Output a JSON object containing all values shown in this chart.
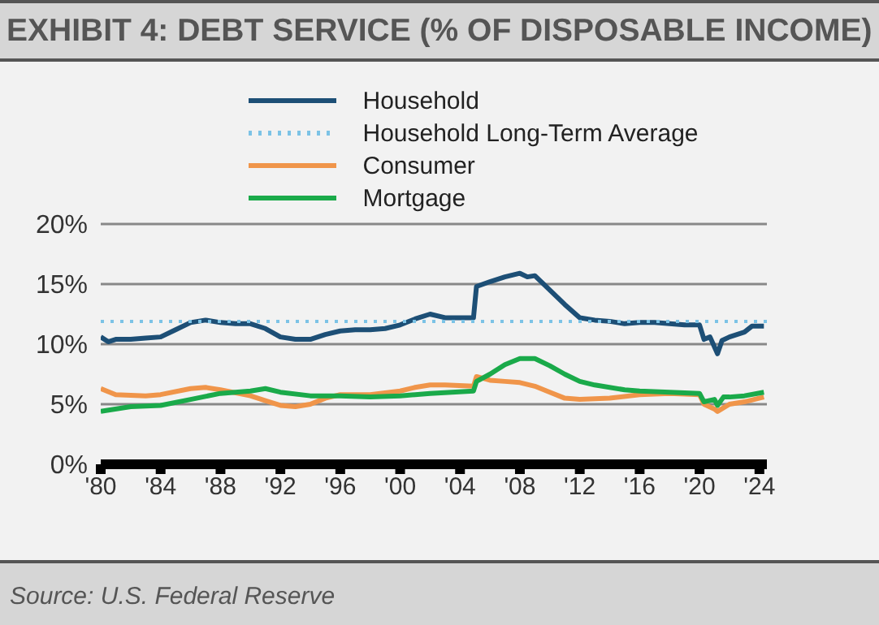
{
  "chart_data": {
    "type": "line",
    "title": "EXHIBIT 4: DEBT SERVICE (% OF DISPOSABLE INCOME)",
    "xlim": [
      1980,
      2024.5
    ],
    "xticks": [
      {
        "value": 1980,
        "label": "'80"
      },
      {
        "value": 1984,
        "label": "'84"
      },
      {
        "value": 1988,
        "label": "'88"
      },
      {
        "value": 1992,
        "label": "'92"
      },
      {
        "value": 1996,
        "label": "'96"
      },
      {
        "value": 2000,
        "label": "'00"
      },
      {
        "value": 2004,
        "label": "'04"
      },
      {
        "value": 2008,
        "label": "'08"
      },
      {
        "value": 2012,
        "label": "'12"
      },
      {
        "value": 2016,
        "label": "'16"
      },
      {
        "value": 2020,
        "label": "'20"
      },
      {
        "value": 2024,
        "label": "'24"
      }
    ],
    "ylim": [
      0,
      20
    ],
    "yticks": [
      {
        "value": 0,
        "label": "0%"
      },
      {
        "value": 5,
        "label": "5%"
      },
      {
        "value": 10,
        "label": "10%"
      },
      {
        "value": 15,
        "label": "15%"
      },
      {
        "value": 20,
        "label": "20%"
      }
    ],
    "grid": "y",
    "legend": "top",
    "marker": "none",
    "series": [
      {
        "name": "Household",
        "color": "#1d4f76",
        "line_style": "solid",
        "x": [
          1980,
          1980.5,
          1981,
          1982,
          1983,
          1984,
          1985,
          1986,
          1987,
          1988,
          1989,
          1990,
          1991,
          1992,
          1993,
          1994,
          1995,
          1996,
          1997,
          1998,
          1999,
          2000,
          2001,
          2002,
          2003,
          2004,
          2004.9,
          2005.1,
          2006,
          2007,
          2008,
          2008.5,
          2009,
          2010,
          2011,
          2012,
          2013,
          2014,
          2015,
          2016,
          2017,
          2018,
          2019,
          2020,
          2020.3,
          2020.7,
          2021.2,
          2021.5,
          2022,
          2023,
          2023.5,
          2024.3
        ],
        "values": [
          10.6,
          10.2,
          10.4,
          10.4,
          10.5,
          10.6,
          11.2,
          11.8,
          12.0,
          11.8,
          11.7,
          11.7,
          11.3,
          10.6,
          10.4,
          10.4,
          10.8,
          11.1,
          11.2,
          11.2,
          11.3,
          11.6,
          12.1,
          12.5,
          12.2,
          12.2,
          12.2,
          14.8,
          15.2,
          15.6,
          15.9,
          15.6,
          15.7,
          14.5,
          13.3,
          12.2,
          12.0,
          11.9,
          11.7,
          11.8,
          11.8,
          11.7,
          11.6,
          11.6,
          10.4,
          10.6,
          9.2,
          10.3,
          10.6,
          11.0,
          11.5,
          11.5
        ]
      },
      {
        "name": "Household Long-Term Average",
        "color": "#7cc3e6",
        "line_style": "dotted",
        "x": [
          1980,
          2024.5
        ],
        "values": [
          11.9,
          11.9
        ]
      },
      {
        "name": "Consumer",
        "color": "#f0954a",
        "line_style": "solid",
        "x": [
          1980,
          1981,
          1983,
          1984,
          1986,
          1987,
          1988,
          1990,
          1991,
          1992,
          1993,
          1994,
          1995,
          1996,
          1998,
          2000,
          2001,
          2002,
          2003,
          2004.9,
          2005.1,
          2006,
          2007,
          2008,
          2009,
          2010,
          2011,
          2012,
          2014,
          2016,
          2018,
          2020,
          2020.3,
          2021,
          2021.2,
          2022,
          2023,
          2024.3
        ],
        "values": [
          6.3,
          5.8,
          5.7,
          5.8,
          6.3,
          6.4,
          6.2,
          5.7,
          5.3,
          4.9,
          4.8,
          5.0,
          5.5,
          5.8,
          5.8,
          6.1,
          6.4,
          6.6,
          6.6,
          6.5,
          7.3,
          7.0,
          6.9,
          6.8,
          6.5,
          6.0,
          5.5,
          5.4,
          5.5,
          5.8,
          5.9,
          5.8,
          5.0,
          4.6,
          4.4,
          5.0,
          5.2,
          5.6
        ]
      },
      {
        "name": "Mortgage",
        "color": "#1aaa4a",
        "line_style": "solid",
        "x": [
          1980,
          1982,
          1984,
          1986,
          1988,
          1990,
          1991,
          1992,
          1994,
          1996,
          1998,
          2000,
          2002,
          2004.9,
          2005.1,
          2006,
          2007,
          2008,
          2009,
          2010,
          2011,
          2012,
          2013,
          2015,
          2016,
          2018,
          2020,
          2020.3,
          2021,
          2021.2,
          2021.6,
          2022,
          2023,
          2024.3
        ],
        "values": [
          4.4,
          4.8,
          4.9,
          5.4,
          5.9,
          6.1,
          6.3,
          6.0,
          5.7,
          5.7,
          5.6,
          5.7,
          5.9,
          6.1,
          6.9,
          7.5,
          8.3,
          8.8,
          8.8,
          8.2,
          7.5,
          6.9,
          6.6,
          6.2,
          6.1,
          6.0,
          5.9,
          5.2,
          5.4,
          4.9,
          5.6,
          5.6,
          5.7,
          6.0
        ]
      }
    ],
    "annotations": [
      "Source: U.S. Federal Reserve"
    ]
  }
}
